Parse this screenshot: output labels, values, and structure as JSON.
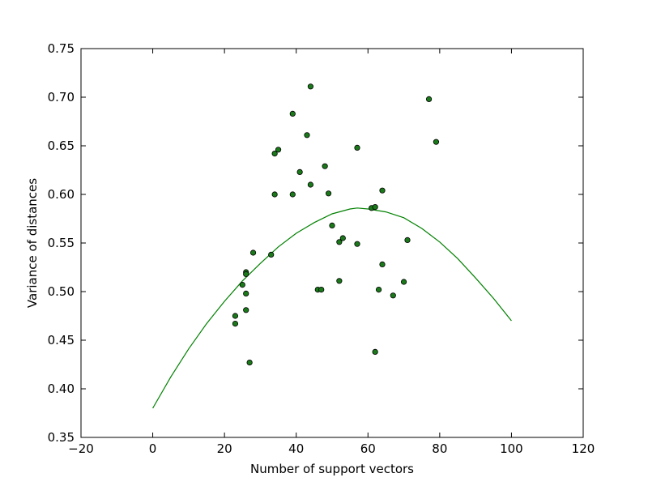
{
  "chart_data": {
    "type": "scatter",
    "title": "",
    "xlabel": "Number of support vectors",
    "ylabel": "Variance of distances",
    "xlim": [
      -20,
      120
    ],
    "ylim": [
      0.35,
      0.75
    ],
    "xticks": [
      -20,
      0,
      20,
      40,
      60,
      80,
      100,
      120
    ],
    "yticks": [
      0.35,
      0.4,
      0.45,
      0.5,
      0.55,
      0.6,
      0.65,
      0.7,
      0.75
    ],
    "xtick_labels": [
      "−20",
      "0",
      "20",
      "40",
      "60",
      "80",
      "100",
      "120"
    ],
    "ytick_labels": [
      "0.35",
      "0.40",
      "0.45",
      "0.50",
      "0.55",
      "0.60",
      "0.65",
      "0.70",
      "0.75"
    ],
    "grid": false,
    "legend": "none",
    "colors": {
      "point_fill": "#1a7a1a",
      "point_edge": "#000000",
      "curve": "#008000"
    },
    "points": [
      {
        "x": 23,
        "y": 0.475
      },
      {
        "x": 23,
        "y": 0.467
      },
      {
        "x": 25,
        "y": 0.507
      },
      {
        "x": 26,
        "y": 0.52
      },
      {
        "x": 26,
        "y": 0.518
      },
      {
        "x": 26,
        "y": 0.498
      },
      {
        "x": 26,
        "y": 0.481
      },
      {
        "x": 27,
        "y": 0.427
      },
      {
        "x": 28,
        "y": 0.54
      },
      {
        "x": 33,
        "y": 0.538
      },
      {
        "x": 34,
        "y": 0.6
      },
      {
        "x": 34,
        "y": 0.642
      },
      {
        "x": 35,
        "y": 0.646
      },
      {
        "x": 39,
        "y": 0.683
      },
      {
        "x": 39,
        "y": 0.6
      },
      {
        "x": 41,
        "y": 0.623
      },
      {
        "x": 43,
        "y": 0.661
      },
      {
        "x": 44,
        "y": 0.711
      },
      {
        "x": 44,
        "y": 0.61
      },
      {
        "x": 46,
        "y": 0.502
      },
      {
        "x": 47,
        "y": 0.502
      },
      {
        "x": 48,
        "y": 0.629
      },
      {
        "x": 49,
        "y": 0.601
      },
      {
        "x": 50,
        "y": 0.568
      },
      {
        "x": 52,
        "y": 0.551
      },
      {
        "x": 52,
        "y": 0.511
      },
      {
        "x": 53,
        "y": 0.555
      },
      {
        "x": 57,
        "y": 0.648
      },
      {
        "x": 57,
        "y": 0.549
      },
      {
        "x": 61,
        "y": 0.586
      },
      {
        "x": 62,
        "y": 0.587
      },
      {
        "x": 62,
        "y": 0.438
      },
      {
        "x": 63,
        "y": 0.502
      },
      {
        "x": 64,
        "y": 0.604
      },
      {
        "x": 64,
        "y": 0.528
      },
      {
        "x": 67,
        "y": 0.496
      },
      {
        "x": 70,
        "y": 0.51
      },
      {
        "x": 71,
        "y": 0.553
      },
      {
        "x": 77,
        "y": 0.698
      },
      {
        "x": 79,
        "y": 0.654
      }
    ],
    "fit_curve": {
      "x": [
        0,
        5,
        10,
        15,
        20,
        25,
        30,
        35,
        40,
        45,
        50,
        55,
        57,
        60,
        65,
        70,
        75,
        80,
        85,
        90,
        95,
        100
      ],
      "y": [
        0.38,
        0.412,
        0.441,
        0.467,
        0.49,
        0.511,
        0.529,
        0.546,
        0.56,
        0.571,
        0.58,
        0.585,
        0.586,
        0.585,
        0.582,
        0.576,
        0.565,
        0.551,
        0.534,
        0.514,
        0.493,
        0.47
      ]
    }
  }
}
